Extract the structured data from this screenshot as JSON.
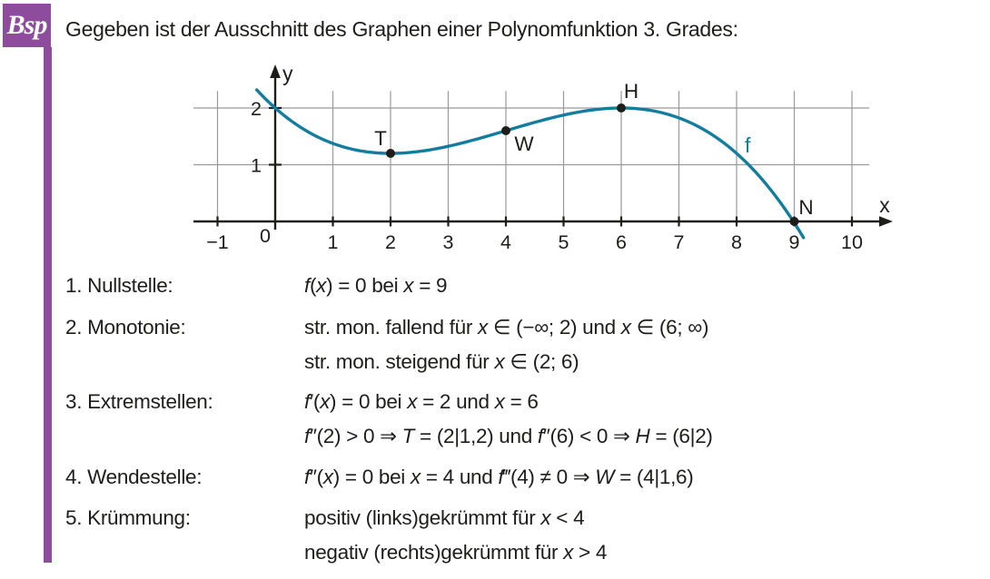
{
  "badge": {
    "label": "Bsp"
  },
  "title": "Gegeben ist der Ausschnitt des Graphen einer Polynomfunktion 3. Grades:",
  "colors": {
    "accent": "#8e4d9c",
    "curve": "#147d9e",
    "grid": "#999999",
    "ink": "#1d1d1b"
  },
  "chart_data": {
    "type": "line",
    "description": "Graph einer Polynomfunktion 3. Grades",
    "curve_label": "f",
    "poly_coeffs": [
      -0.025,
      0.3,
      -0.9,
      2
    ],
    "x_plot_range": [
      -0.32,
      9.2
    ],
    "points": [
      {
        "label": "T",
        "x": 2,
        "y": 1.2
      },
      {
        "label": "W",
        "x": 4,
        "y": 1.6
      },
      {
        "label": "H",
        "x": 6,
        "y": 2
      },
      {
        "label": "N",
        "x": 9,
        "y": 0
      }
    ],
    "x_ticks": [
      -1,
      1,
      2,
      3,
      4,
      5,
      6,
      7,
      8,
      9,
      10
    ],
    "x_tick_labels": [
      "−1",
      "1",
      "2",
      "3",
      "4",
      "5",
      "6",
      "7",
      "8",
      "9",
      "10"
    ],
    "y_ticks": [
      1,
      2
    ],
    "y_tick_labels": [
      "1",
      "2"
    ],
    "origin_label": "0",
    "xlabel": "x",
    "ylabel": "y",
    "xlim": [
      -1.45,
      10.55
    ],
    "ylim": [
      0,
      2.3
    ],
    "grid": true
  },
  "items": [
    {
      "label": "1. Nullstelle:",
      "lines": [
        [
          [
            "i",
            "f"
          ],
          [
            "n",
            "("
          ],
          [
            "i",
            "x"
          ],
          [
            "n",
            ") = 0  bei "
          ],
          [
            "i",
            "x"
          ],
          [
            "n",
            " = 9"
          ]
        ]
      ]
    },
    {
      "label": "2. Monotonie:",
      "lines": [
        [
          [
            "n",
            "str. mon. fallend für "
          ],
          [
            "i",
            "x"
          ],
          [
            "n",
            " ∈ (−∞; 2) und "
          ],
          [
            "i",
            "x"
          ],
          [
            "n",
            " ∈ (6; ∞)"
          ]
        ],
        [
          [
            "n",
            "str. mon. steigend für "
          ],
          [
            "i",
            "x"
          ],
          [
            "n",
            " ∈ (2; 6)"
          ]
        ]
      ]
    },
    {
      "label": "3. Extremstellen:",
      "lines": [
        [
          [
            "i",
            "f"
          ],
          [
            "n",
            "′("
          ],
          [
            "i",
            "x"
          ],
          [
            "n",
            ") = 0 bei "
          ],
          [
            "i",
            "x"
          ],
          [
            "n",
            " = 2 und "
          ],
          [
            "i",
            "x"
          ],
          [
            "n",
            " = 6"
          ]
        ],
        [
          [
            "i",
            "f"
          ],
          [
            "n",
            "″(2) > 0  ⇒  "
          ],
          [
            "i",
            "T"
          ],
          [
            "n",
            " = (2|1,2)  und  "
          ],
          [
            "i",
            "f"
          ],
          [
            "n",
            "″(6) < 0  ⇒  "
          ],
          [
            "i",
            "H"
          ],
          [
            "n",
            " = (6|2)"
          ]
        ]
      ]
    },
    {
      "label": "4. Wendestelle:",
      "lines": [
        [
          [
            "i",
            "f"
          ],
          [
            "n",
            "″("
          ],
          [
            "i",
            "x"
          ],
          [
            "n",
            ") = 0 bei "
          ],
          [
            "i",
            "x"
          ],
          [
            "n",
            " = 4  und  "
          ],
          [
            "i",
            "f"
          ],
          [
            "n",
            "‴(4) ≠ 0  ⇒  "
          ],
          [
            "i",
            "W"
          ],
          [
            "n",
            " = (4|1,6)"
          ]
        ]
      ]
    },
    {
      "label": "5. Krümmung:",
      "lines": [
        [
          [
            "n",
            "positiv (links)gekrümmt für "
          ],
          [
            "i",
            "x"
          ],
          [
            "n",
            " < 4"
          ]
        ],
        [
          [
            "n",
            "negativ (rechts)gekrümmt für "
          ],
          [
            "i",
            "x"
          ],
          [
            "n",
            " > 4"
          ]
        ]
      ]
    }
  ]
}
